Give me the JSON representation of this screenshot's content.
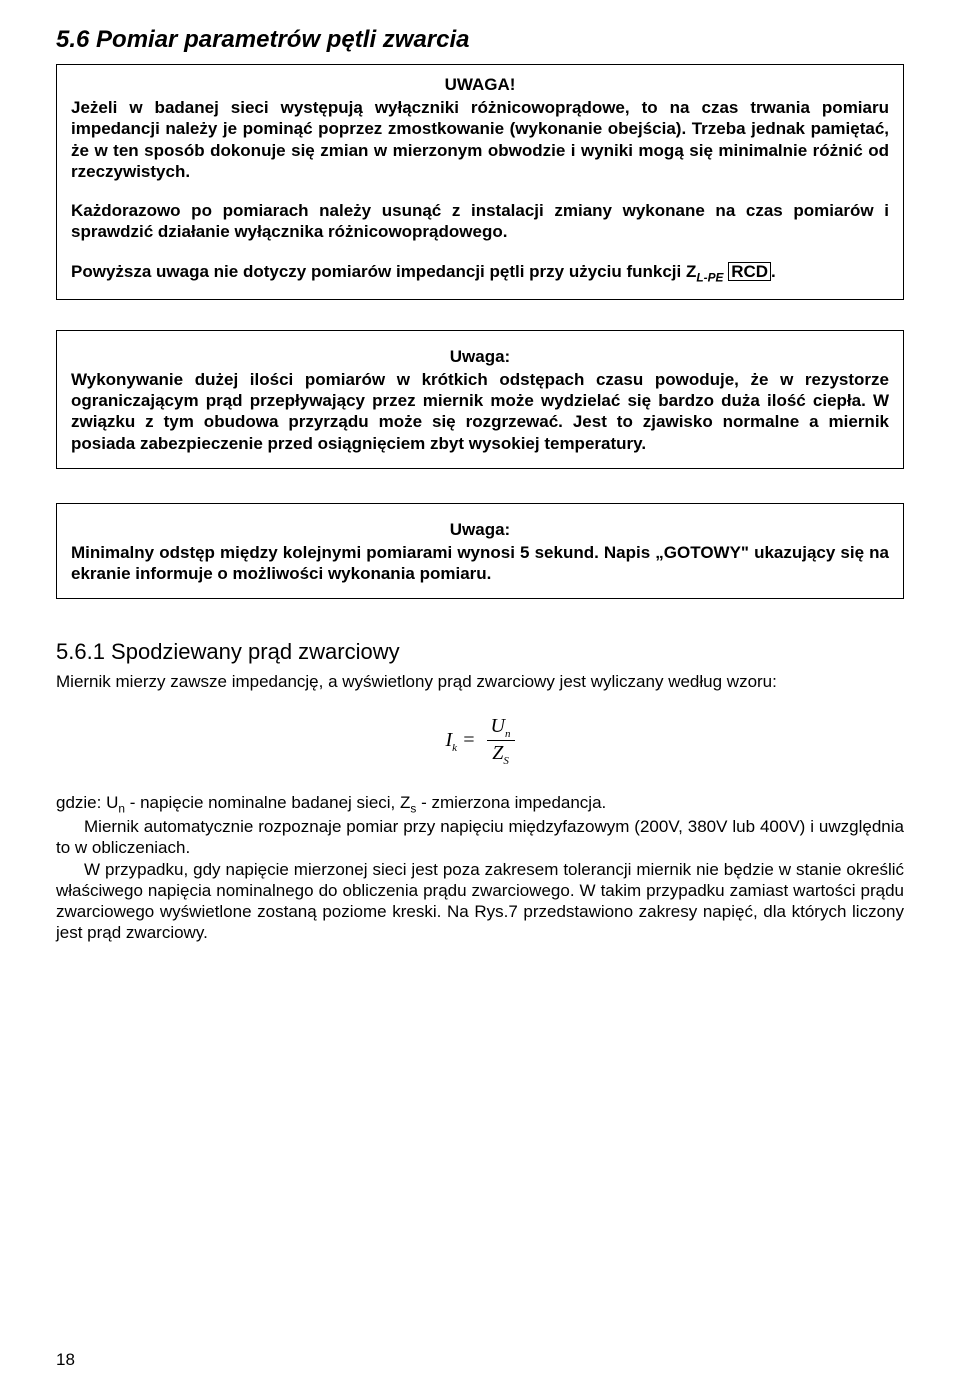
{
  "section56": {
    "title": "5.6 Pomiar parametrów pętli zwarcia",
    "warn_title": "UWAGA!",
    "warn_p1": "Jeżeli w badanej sieci występują wyłączniki różnicowoprądowe, to na czas trwania pomiaru impedancji należy je pominąć poprzez zmostkowanie (wykonanie obejścia). Trzeba jednak pamiętać, że w ten sposób dokonuje się zmian w mierzonym obwodzie i wyniki mogą się minimalnie różnić od rzeczywistych.",
    "warn_p2": "Każdorazowo po pomiarach należy usunąć z instalacji zmiany wykonane na czas pomiarów i sprawdzić działanie wyłącznika różnicowoprądowego.",
    "warn_p3a": "Powyższa uwaga nie dotyczy pomiarów impedancji pętli przy użyciu funkcji Z",
    "warn_p3_sub": "L-PE",
    "rcd": "RCD",
    "warn_p3b": "."
  },
  "box2": {
    "title": "Uwaga:",
    "text": "Wykonywanie dużej ilości pomiarów w krótkich odstępach czasu powoduje, że w rezystorze ograniczającym prąd przepływający przez miernik może wydzielać się bardzo duża ilość ciepła. W związku z tym obudowa przyrządu może się rozgrzewać. Jest to zjawisko normalne a miernik posiada zabezpieczenie przed osiągnięciem zbyt wysokiej temperatury."
  },
  "box3": {
    "title": "Uwaga:",
    "text": "Minimalny odstęp między kolejnymi pomiarami wynosi 5 sekund. Napis „GOTOWY\" ukazujący się na ekranie informuje o możliwości wykonania pomiaru."
  },
  "section561": {
    "title": "5.6.1 Spodziewany prąd zwarciowy",
    "intro": "Miernik mierzy zawsze impedancję, a wyświetlony prąd zwarciowy jest wyliczany według wzoru:",
    "formula": {
      "lhs_I": "I",
      "lhs_k": "k",
      "eq": " = ",
      "num_U": "U",
      "num_n": "n",
      "den_Z": "Z",
      "den_S": "S"
    },
    "p1a": "gdzie: U",
    "p1_un": "n",
    "p1b": " - napięcie nominalne badanej sieci, Z",
    "p1_zs": "s",
    "p1c": " - zmierzona impedancja.",
    "p2": "Miernik automatycznie rozpoznaje pomiar przy napięciu międzyfazowym (200V, 380V lub 400V) i uwzględnia to w obliczeniach.",
    "p3": "W przypadku, gdy napięcie mierzonej sieci jest poza zakresem tolerancji miernik nie będzie w stanie określić właściwego napięcia nominalnego do obliczenia prądu zwarciowego. W takim przypadku zamiast wartości prądu zwarciowego wyświetlone zostaną poziome kreski. Na Rys.7 przedstawiono zakresy napięć, dla których liczony jest prąd zwarciowy."
  },
  "page_number": "18"
}
